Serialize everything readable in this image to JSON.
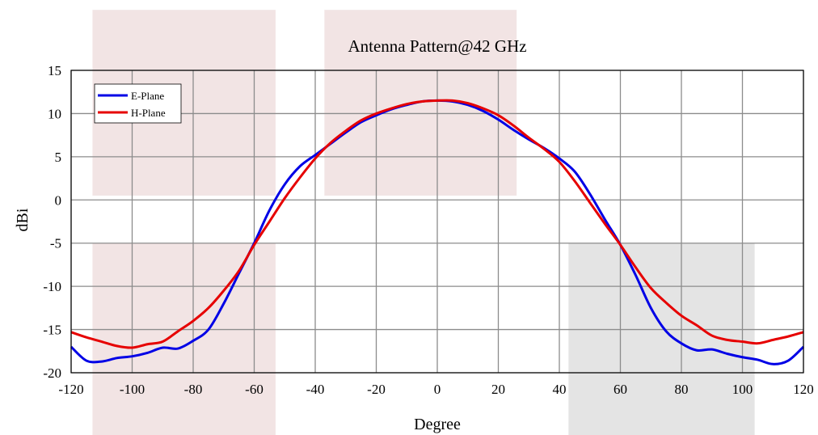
{
  "chart_data": {
    "type": "line",
    "title": "Antenna Pattern@42 GHz",
    "xlabel": "Degree",
    "ylabel": "dBi",
    "xlim": [
      -120,
      120
    ],
    "ylim": [
      -20,
      15
    ],
    "xticks": [
      -120,
      -100,
      -80,
      -60,
      -40,
      -20,
      0,
      20,
      40,
      60,
      80,
      100,
      120
    ],
    "yticks": [
      15,
      10,
      5,
      0,
      -5,
      -10,
      -15,
      -20
    ],
    "grid": true,
    "legend_position": "top-left",
    "background_bands": [
      {
        "x": [
          -113,
          -53
        ],
        "y": [
          0.5,
          22
        ],
        "color": "#f2e4e4"
      },
      {
        "x": [
          -113,
          -53
        ],
        "y": [
          -29,
          -5
        ],
        "color": "#f2e4e4"
      },
      {
        "x": [
          -37,
          26
        ],
        "y": [
          0.5,
          22
        ],
        "color": "#f2e4e4"
      },
      {
        "x": [
          43,
          104
        ],
        "y": [
          -29,
          -5
        ],
        "color": "#e4e4e4"
      }
    ],
    "series": [
      {
        "name": "E-Plane",
        "color": "#0000e6",
        "x": [
          -120,
          -115,
          -110,
          -105,
          -100,
          -95,
          -90,
          -85,
          -80,
          -75,
          -70,
          -65,
          -60,
          -55,
          -50,
          -45,
          -40,
          -35,
          -30,
          -25,
          -20,
          -15,
          -10,
          -5,
          0,
          5,
          10,
          15,
          20,
          25,
          30,
          35,
          40,
          45,
          50,
          55,
          60,
          65,
          70,
          75,
          80,
          85,
          90,
          95,
          100,
          105,
          110,
          115,
          120
        ],
        "y": [
          -17,
          -18.6,
          -18.7,
          -18.3,
          -18.1,
          -17.7,
          -17.1,
          -17.2,
          -16.3,
          -15,
          -12,
          -8.5,
          -5,
          -1.2,
          1.8,
          3.9,
          5.2,
          6.5,
          7.8,
          9,
          9.8,
          10.5,
          11,
          11.4,
          11.5,
          11.4,
          11,
          10.3,
          9.3,
          8.1,
          7,
          6,
          4.8,
          3.3,
          0.7,
          -2.3,
          -5.2,
          -8.7,
          -12.5,
          -15.2,
          -16.6,
          -17.4,
          -17.3,
          -17.8,
          -18.2,
          -18.5,
          -19,
          -18.6,
          -17
        ]
      },
      {
        "name": "H-Plane",
        "color": "#e60000",
        "x": [
          -120,
          -115,
          -110,
          -105,
          -100,
          -95,
          -90,
          -85,
          -80,
          -75,
          -70,
          -65,
          -60,
          -55,
          -50,
          -45,
          -40,
          -35,
          -30,
          -25,
          -20,
          -15,
          -10,
          -5,
          0,
          5,
          10,
          15,
          20,
          25,
          30,
          35,
          40,
          45,
          50,
          55,
          60,
          65,
          70,
          75,
          80,
          85,
          90,
          95,
          100,
          105,
          110,
          115,
          120
        ],
        "y": [
          -15.3,
          -15.9,
          -16.4,
          -16.9,
          -17.1,
          -16.7,
          -16.4,
          -15.2,
          -14,
          -12.5,
          -10.5,
          -8.2,
          -5.2,
          -2.5,
          0.2,
          2.6,
          4.8,
          6.6,
          8,
          9.2,
          10,
          10.6,
          11.1,
          11.4,
          11.5,
          11.5,
          11.2,
          10.6,
          9.8,
          8.6,
          7.2,
          5.9,
          4.4,
          2.2,
          -0.3,
          -2.8,
          -5.2,
          -7.8,
          -10.2,
          -11.9,
          -13.4,
          -14.5,
          -15.7,
          -16.2,
          -16.4,
          -16.6,
          -16.2,
          -15.8,
          -15.3
        ]
      }
    ]
  }
}
